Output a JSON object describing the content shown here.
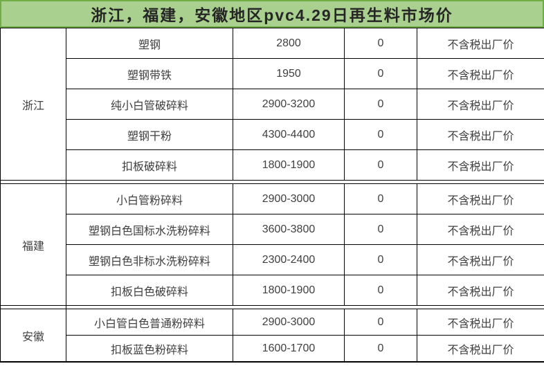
{
  "title": {
    "text": "浙江，福建，安徽地区pvc4.29日再生料市场价"
  },
  "colors": {
    "header_bg": "#a9d08e",
    "header_border": "#70ad47",
    "title_text": "#262626",
    "cell_text": "#3f3f3f",
    "grid_line": "#000000"
  },
  "chart_data": {
    "type": "table",
    "title": "浙江，福建，安徽地区pvc4.29日再生料市场价",
    "groups": [
      {
        "region": "浙江",
        "rows": [
          {
            "material": "塑钢",
            "price": "2800",
            "change": "0",
            "note": "不含税出厂价"
          },
          {
            "material": "塑钢带铁",
            "price": "1950",
            "change": "0",
            "note": "不含税出厂价"
          },
          {
            "material": "纯小白管破碎料",
            "price": "2900-3200",
            "change": "0",
            "note": "不含税出厂价"
          },
          {
            "material": "塑钢干粉",
            "price": "4300-4400",
            "change": "0",
            "note": "不含税出厂价"
          },
          {
            "material": "扣板破碎料",
            "price": "1800-1900",
            "change": "0",
            "note": "不含税出厂价"
          }
        ]
      },
      {
        "region": "福建",
        "rows": [
          {
            "material": "小白管粉碎料",
            "price": "2900-3000",
            "change": "0",
            "note": "不含税出厂价"
          },
          {
            "material": "塑钢白色国标水洗粉碎料",
            "price": "3600-3800",
            "change": "0",
            "note": "不含税出厂价"
          },
          {
            "material": "塑钢白色非标水洗粉碎料",
            "price": "2300-2400",
            "change": "0",
            "note": "不含税出厂价"
          },
          {
            "material": "扣板白色破碎料",
            "price": "1800-1900",
            "change": "0",
            "note": "不含税出厂价"
          }
        ]
      },
      {
        "region": "安徽",
        "rows": [
          {
            "material": "小白管白色普通粉碎料",
            "price": "2900-3000",
            "change": "0",
            "note": "不含税出厂价"
          },
          {
            "material": "扣板蓝色粉碎料",
            "price": "1600-1700",
            "change": "0",
            "note": "不含税出厂价"
          }
        ]
      }
    ]
  }
}
